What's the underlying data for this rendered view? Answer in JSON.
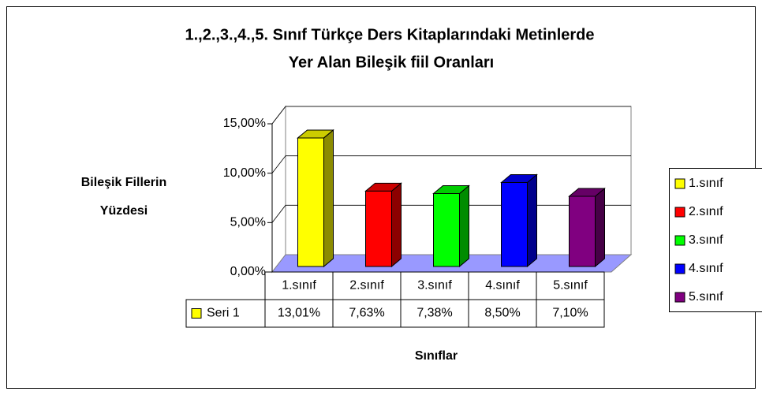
{
  "chart_data": {
    "type": "bar3d",
    "title": [
      "1.,2.,3.,4.,5. Sınıf Türkçe Ders Kitaplarındaki Metinlerde",
      "Yer Alan Bileşik fiil Oranları"
    ],
    "y_label": [
      "Bileşik Fillerin",
      "Yüzdesi"
    ],
    "x_label": "Sınıflar",
    "categories": [
      "1.sınıf",
      "2.sınıf",
      "3.sınıf",
      "4.sınıf",
      "5.sınıf"
    ],
    "series_name": "Seri 1",
    "values": [
      13.01,
      7.63,
      7.38,
      8.5,
      7.1
    ],
    "value_labels": [
      "13,01%",
      "7,63%",
      "7,38%",
      "8,50%",
      "7,10%"
    ],
    "colors": [
      "#ffff00",
      "#ff0000",
      "#00ff00",
      "#0000ff",
      "#800080"
    ],
    "ylim": [
      0,
      15
    ],
    "yticks": [
      {
        "value": 0,
        "label": "0,00%"
      },
      {
        "value": 5,
        "label": "5,00%"
      },
      {
        "value": 10,
        "label": "10,00%"
      },
      {
        "value": 15,
        "label": "15,00%"
      }
    ],
    "grid": true,
    "legend": "right"
  }
}
